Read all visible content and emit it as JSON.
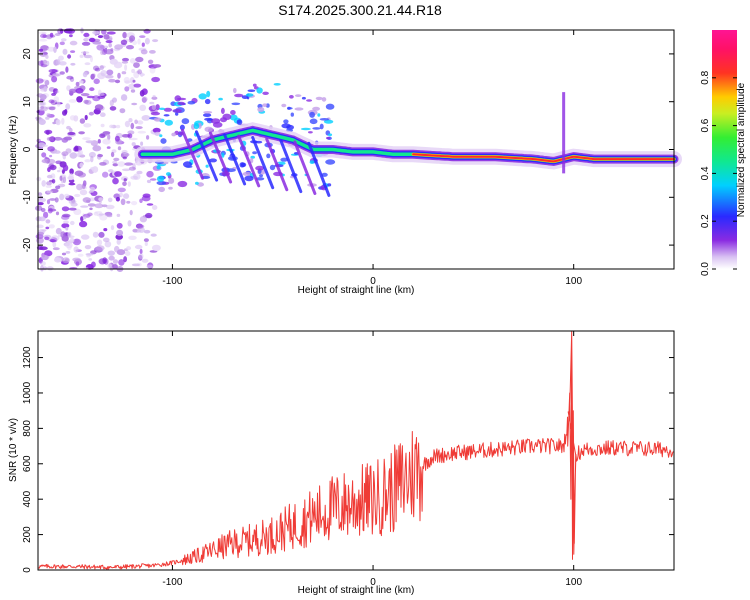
{
  "title": "S174.2025.300.21.44.R18",
  "chart_data": [
    {
      "type": "heatmap",
      "title": "S174.2025.300.21.44.R18",
      "xlabel": "Height of straight line (km)",
      "ylabel": "Frequency (Hz)",
      "xlim": [
        -167,
        150
      ],
      "ylim": [
        -25,
        25
      ],
      "xticks": [
        -100,
        0,
        100
      ],
      "yticks": [
        -20,
        -10,
        0,
        10,
        20
      ],
      "xtick_labels": [
        "-100",
        "0",
        "100"
      ],
      "ytick_labels": [
        "-20",
        "-10",
        "0",
        "10",
        "20"
      ],
      "colorbar": {
        "label": "Normalized spectral amplitude",
        "range": [
          0,
          1
        ],
        "ticks": [
          0.0,
          0.2,
          0.4,
          0.6,
          0.8
        ],
        "tick_labels": [
          "0.0",
          "0.2",
          "0.4",
          "0.6",
          "0.8"
        ],
        "colormap": "rainbow (white-violet-blue-cyan-green-yellow-red-magenta)"
      },
      "ridge": {
        "description": "dominant frequency ridge",
        "x": [
          -115,
          -100,
          -90,
          -80,
          -70,
          -60,
          -50,
          -40,
          -30,
          -20,
          -10,
          0,
          10,
          20,
          40,
          60,
          80,
          90,
          100,
          110,
          150
        ],
        "y": [
          -1,
          -1,
          0,
          2,
          3,
          4,
          3,
          2,
          0,
          0,
          -0.5,
          -0.5,
          -1,
          -1,
          -1.5,
          -1.5,
          -2,
          -2.5,
          -1.5,
          -2,
          -2
        ]
      }
    },
    {
      "type": "line",
      "xlabel": "Height of straight line (km)",
      "ylabel": "SNR (10 * v/v)",
      "xlim": [
        -167,
        150
      ],
      "ylim": [
        0,
        1350
      ],
      "xticks": [
        -100,
        0,
        100
      ],
      "yticks": [
        0,
        200,
        400,
        600,
        800,
        1000,
        1200
      ],
      "xtick_labels": [
        "-100",
        "0",
        "100"
      ],
      "ytick_labels": [
        "0",
        "200",
        "400",
        "600",
        "800",
        "1000",
        "1200"
      ],
      "color": "#ef3b36",
      "series": [
        {
          "name": "SNR",
          "x": [
            -167,
            -150,
            -130,
            -110,
            -100,
            -90,
            -80,
            -70,
            -60,
            -50,
            -40,
            -30,
            -20,
            -10,
            0,
            10,
            20,
            30,
            40,
            60,
            80,
            95,
            98,
            99,
            100,
            101,
            105,
            120,
            150
          ],
          "y": [
            20,
            20,
            15,
            25,
            40,
            70,
            110,
            150,
            170,
            200,
            250,
            300,
            350,
            380,
            400,
            450,
            550,
            640,
            660,
            680,
            700,
            700,
            900,
            1350,
            60,
            650,
            680,
            690,
            680
          ]
        }
      ]
    }
  ]
}
